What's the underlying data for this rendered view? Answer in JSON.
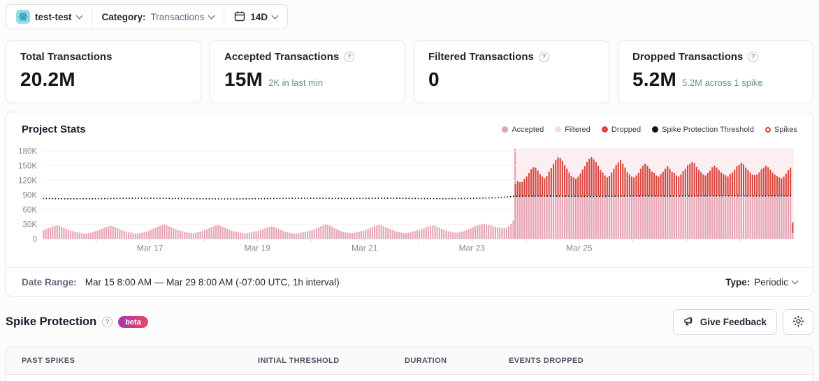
{
  "topbar": {
    "project": "test-test",
    "category_label": "Category:",
    "category_value": "Transactions",
    "range": "14D"
  },
  "cards": [
    {
      "title": "Total Transactions",
      "value": "20.2M",
      "sub": "",
      "has_help": false
    },
    {
      "title": "Accepted Transactions",
      "value": "15M",
      "sub": "2K in last min",
      "has_help": true
    },
    {
      "title": "Filtered Transactions",
      "value": "0",
      "sub": "",
      "has_help": true
    },
    {
      "title": "Dropped Transactions",
      "value": "5.2M",
      "sub": "5.2M across 1 spike",
      "has_help": true
    }
  ],
  "chart_data": {
    "type": "bar",
    "title": "Project Stats",
    "interval": "1h",
    "x_start": "Mar 15 8:00 AM",
    "x_end": "Mar 29 8:00 AM",
    "timezone": "-07:00 UTC",
    "unit": "K (thousands of transactions per hour)",
    "ylim": [
      0,
      190
    ],
    "grid": true,
    "legend_position": "top-right",
    "y_ticks": [
      {
        "v": 180,
        "label": "180K"
      },
      {
        "v": 150,
        "label": "150K"
      },
      {
        "v": 120,
        "label": "120K"
      },
      {
        "v": 90,
        "label": "90K"
      },
      {
        "v": 60,
        "label": "60K"
      },
      {
        "v": 30,
        "label": "30K"
      },
      {
        "v": 0,
        "label": "0"
      }
    ],
    "n_days": 14,
    "x_labels": [
      {
        "day": 2,
        "label": "Mar 17"
      },
      {
        "day": 4,
        "label": "Mar 19"
      },
      {
        "day": 6,
        "label": "Mar 21"
      },
      {
        "day": 8,
        "label": "Mar 23"
      },
      {
        "day": 10,
        "label": "Mar 25"
      }
    ],
    "legend": [
      {
        "label": "Accepted",
        "color": "#e7a0ad",
        "marker": "dot"
      },
      {
        "label": "Filtered",
        "color": "#f7dbe1",
        "marker": "dot"
      },
      {
        "label": "Dropped",
        "color": "#de463e",
        "marker": "dot"
      },
      {
        "label": "Spike Protection Threshold",
        "color": "#16121b",
        "marker": "dot"
      },
      {
        "label": "Spikes",
        "color": "#e03e33",
        "marker": "ring"
      }
    ],
    "colors": {
      "accepted": "#e7a3b2",
      "dropped": "#dc453d",
      "band": "rgba(235,75,95,0.09)",
      "spike_line": "#ef9aa4"
    },
    "spike_region": {
      "start_index": 211,
      "spike_count": 1,
      "dropped_total": "5.2M"
    },
    "series": {
      "filtered_total": 0,
      "accepted": [
        18,
        20,
        22,
        24,
        26,
        27,
        28,
        27,
        25,
        23,
        21,
        19,
        17,
        16,
        15,
        14,
        13,
        12,
        11,
        11,
        12,
        13,
        14,
        16,
        17,
        19,
        21,
        23,
        25,
        26,
        27,
        26,
        24,
        22,
        20,
        18,
        16,
        15,
        14,
        13,
        12,
        11,
        11,
        12,
        13,
        14,
        15,
        17,
        19,
        21,
        23,
        25,
        27,
        29,
        30,
        28,
        26,
        24,
        22,
        20,
        18,
        17,
        16,
        15,
        14,
        13,
        12,
        12,
        13,
        14,
        15,
        17,
        18,
        20,
        22,
        24,
        26,
        28,
        29,
        27,
        25,
        23,
        21,
        19,
        17,
        16,
        15,
        14,
        13,
        12,
        11,
        12,
        13,
        14,
        15,
        16,
        16,
        18,
        20,
        22,
        24,
        25,
        26,
        25,
        23,
        21,
        19,
        17,
        15,
        14,
        13,
        12,
        11,
        11,
        12,
        13,
        14,
        15,
        16,
        17,
        18,
        20,
        22,
        24,
        26,
        28,
        30,
        29,
        27,
        25,
        22,
        20,
        18,
        16,
        15,
        14,
        13,
        12,
        12,
        13,
        14,
        15,
        16,
        17,
        19,
        21,
        23,
        25,
        27,
        28,
        29,
        28,
        26,
        24,
        22,
        20,
        18,
        16,
        15,
        14,
        13,
        12,
        12,
        13,
        14,
        15,
        16,
        18,
        18,
        20,
        22,
        24,
        26,
        27,
        28,
        27,
        25,
        23,
        21,
        19,
        17,
        16,
        15,
        14,
        13,
        13,
        14,
        15,
        16,
        18,
        20,
        22,
        24,
        26,
        28,
        29,
        30,
        31,
        30,
        29,
        28,
        26,
        25,
        24,
        23,
        22,
        22,
        23,
        26,
        31,
        38,
        87,
        87,
        88,
        87,
        88,
        88,
        87,
        88,
        87,
        88,
        88,
        87,
        88,
        88,
        87,
        88,
        87,
        88,
        88,
        87,
        88,
        88,
        87,
        88,
        88,
        87,
        88,
        88,
        87,
        88,
        88,
        87,
        88,
        88,
        88,
        87,
        88,
        88,
        87,
        88,
        88,
        88,
        87,
        88,
        88,
        88,
        87,
        88,
        88,
        88,
        87,
        88,
        88,
        88,
        88,
        87,
        88,
        88,
        88,
        88,
        88,
        88,
        89,
        88,
        88,
        89,
        88,
        88,
        89,
        88,
        88,
        89,
        88,
        88,
        88,
        89,
        88,
        89,
        88,
        88,
        89,
        88,
        88,
        89,
        88,
        88,
        89,
        88,
        89,
        88,
        88,
        89,
        88,
        89,
        88,
        88,
        89,
        88,
        88,
        89,
        88,
        88,
        89,
        88,
        89,
        88,
        88,
        89,
        88,
        88,
        89,
        88,
        88,
        89,
        88,
        88,
        88,
        89,
        88,
        88,
        88,
        88,
        89,
        88,
        12
      ],
      "dropped_start_index": 211,
      "dropped": [
        25,
        32,
        28,
        30,
        35,
        40,
        48,
        55,
        60,
        58,
        52,
        46,
        40,
        36,
        42,
        50,
        58,
        66,
        74,
        80,
        78,
        72,
        64,
        56,
        48,
        42,
        38,
        35,
        40,
        46,
        54,
        62,
        70,
        76,
        80,
        76,
        70,
        62,
        54,
        48,
        42,
        38,
        42,
        48,
        56,
        64,
        70,
        74,
        66,
        58,
        50,
        44,
        40,
        38,
        42,
        48,
        56,
        62,
        66,
        62,
        56,
        50,
        46,
        42,
        40,
        44,
        50,
        56,
        60,
        56,
        50,
        46,
        42,
        40,
        44,
        50,
        56,
        62,
        66,
        70,
        66,
        60,
        54,
        48,
        44,
        42,
        46,
        52,
        58,
        62,
        58,
        52,
        48,
        44,
        42,
        40,
        44,
        48,
        54,
        60,
        64,
        68,
        64,
        58,
        52,
        48,
        44,
        42,
        44,
        48,
        54,
        58,
        62,
        58,
        54,
        48,
        44,
        40,
        38,
        36,
        40,
        46,
        52,
        58,
        22
      ],
      "threshold_points": [
        [
          0,
          83
        ],
        [
          12,
          82.3
        ],
        [
          24,
          82.6
        ],
        [
          36,
          83.2
        ],
        [
          48,
          83.5
        ],
        [
          60,
          83
        ],
        [
          72,
          82.4
        ],
        [
          84,
          82
        ],
        [
          96,
          82.6
        ],
        [
          108,
          83.2
        ],
        [
          120,
          83.6
        ],
        [
          132,
          83
        ],
        [
          144,
          83.2
        ],
        [
          156,
          83.6
        ],
        [
          168,
          83
        ],
        [
          180,
          82.6
        ],
        [
          192,
          83.2
        ],
        [
          204,
          84.5
        ],
        [
          211,
          87.5
        ],
        [
          222,
          88
        ],
        [
          234,
          87.6
        ],
        [
          246,
          87.2
        ],
        [
          258,
          87.8
        ],
        [
          270,
          88.2
        ],
        [
          282,
          87.8
        ],
        [
          294,
          88.2
        ],
        [
          306,
          88.6
        ],
        [
          318,
          88.2
        ],
        [
          330,
          88.4
        ],
        [
          335,
          88.4
        ]
      ]
    }
  },
  "footer": {
    "date_range_label": "Date Range:",
    "date_range_value": "Mar 15 8:00 AM — Mar 29 8:00 AM (-07:00 UTC, 1h interval)",
    "type_label": "Type:",
    "type_value": "Periodic"
  },
  "spike_section": {
    "title": "Spike Protection",
    "badge": "beta",
    "feedback_button": "Give Feedback"
  },
  "table": {
    "columns": [
      "PAST SPIKES",
      "INITIAL THRESHOLD",
      "DURATION",
      "EVENTS DROPPED"
    ]
  }
}
